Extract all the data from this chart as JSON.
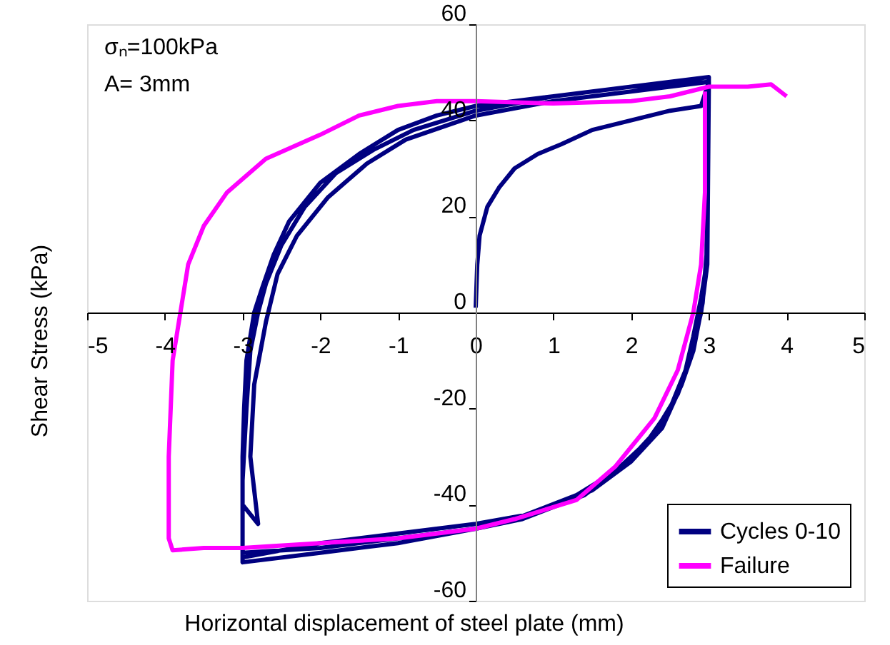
{
  "chart_data": {
    "type": "line",
    "xlabel": "Horizontal displacement of steel plate (mm)",
    "ylabel": "Shear Stress (kPa)",
    "annotations": [
      "σₙ=100kPa",
      "A= 3mm"
    ],
    "xlim": [
      -5,
      5
    ],
    "xticks": [
      -5,
      -4,
      -3,
      -2,
      -1,
      0,
      1,
      2,
      3,
      4,
      5
    ],
    "ylim": [
      -60,
      60
    ],
    "yticks": [
      -60,
      -40,
      -20,
      0,
      20,
      40,
      60
    ],
    "grid": false,
    "legend": "bottom right",
    "marker": "none",
    "line_style": "solid",
    "series": [
      {
        "name": "Cycles 0-10",
        "color": "#000080",
        "x": [
          0,
          0.02,
          0.05,
          0.15,
          0.3,
          0.5,
          0.8,
          1.1,
          1.5,
          2,
          2.5,
          2.9,
          3,
          2.98,
          2.97,
          2.9,
          2.8,
          2.7,
          2.5,
          2.2,
          1.8,
          1.3,
          0.5,
          0,
          -1,
          -2,
          -3,
          -3,
          -2.98,
          -2.95,
          -2.85,
          -2.75,
          -2.6,
          -2.4,
          -2,
          -1.5,
          -1,
          -0.5,
          0,
          1,
          2,
          3,
          2.98,
          2.9,
          2.75,
          2.6,
          2.3,
          1.9,
          1.4,
          0.6,
          0,
          -1,
          -2,
          -3,
          -3,
          -2.95,
          -2.9,
          -2.8,
          -2.7,
          -2.5,
          -2.2,
          -1.8,
          -1.3,
          -0.8,
          0,
          1,
          2,
          3,
          2.97,
          2.92,
          2.8,
          2.65,
          2.4,
          2,
          1.5,
          0.7,
          0,
          -1,
          -2,
          -3,
          -3,
          -2.8,
          -2.9,
          -2.85,
          -2.7,
          -2.55,
          -2.3,
          -1.9,
          -1.4,
          -0.9,
          0,
          1,
          2,
          3
        ],
        "values": [
          1,
          10,
          16,
          22,
          26,
          30,
          33,
          35,
          38,
          40,
          42,
          43,
          48,
          30,
          10,
          3,
          -5,
          -12,
          -20,
          -27,
          -33,
          -38,
          -43,
          -45,
          -47,
          -49,
          -50,
          -30,
          -20,
          -10,
          0,
          5,
          12,
          19,
          27,
          33,
          38,
          41,
          43,
          45,
          47,
          48,
          10,
          0,
          -10,
          -17,
          -25,
          -32,
          -38,
          -43,
          -45,
          -48,
          -50,
          -52,
          -35,
          -20,
          -8,
          0,
          6,
          14,
          22,
          29,
          34,
          38,
          42,
          45,
          47,
          49,
          12,
          2,
          -8,
          -15,
          -24,
          -31,
          -37,
          -42,
          -44,
          -46,
          -48,
          -51,
          -40,
          -44,
          -30,
          -15,
          -2,
          8,
          16,
          24,
          31,
          36,
          41,
          44,
          46,
          48
        ]
      },
      {
        "name": "Failure",
        "color": "#ff00ff",
        "x": [
          2.95,
          2.95,
          2.9,
          2.8,
          2.6,
          2.3,
          1.8,
          1.3,
          0.5,
          0,
          -1,
          -2,
          -3,
          -3.5,
          -3.9,
          -3.95,
          -3.95,
          -3.9,
          -3.8,
          -3.7,
          -3.5,
          -3.2,
          -2.7,
          -2,
          -1.5,
          -1,
          -0.5,
          0,
          1,
          2,
          2.5,
          3,
          3.5,
          3.8,
          4
        ],
        "values": [
          46,
          25,
          10,
          0,
          -12,
          -22,
          -32,
          -39,
          -43,
          -45,
          -47,
          -48,
          -49,
          -49,
          -49.5,
          -47,
          -30,
          -10,
          0,
          10,
          18,
          25,
          32,
          37,
          41,
          43,
          44,
          44,
          43.5,
          44,
          45,
          47,
          47,
          47.5,
          45
        ]
      }
    ]
  }
}
